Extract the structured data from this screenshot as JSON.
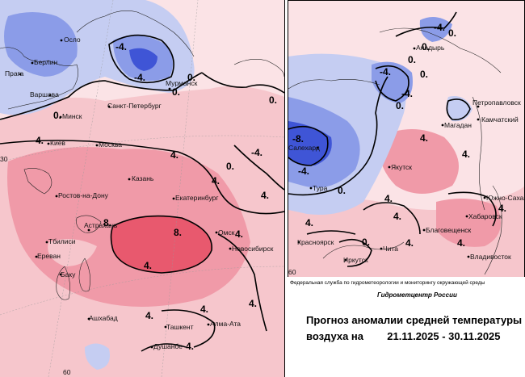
{
  "colors": {
    "warm_light": "#f6c6cc",
    "warm_mid": "#f09aa8",
    "warm_strong": "#e8596e",
    "cold_light": "#c5cdf2",
    "cold_mid": "#8b9ce8",
    "cold_strong": "#3f55d6",
    "isoline": "#000000"
  },
  "left_map": {
    "cities": [
      "Осло",
      "Берлин",
      "Прага",
      "Варшава",
      "Минск",
      "Киев",
      "Мурманск",
      "Санкт-Петербург",
      "Москва",
      "Казань",
      "Ростов-на-Дону",
      "Екатеринбург",
      "Астрахань",
      "Тбилиси",
      "Ереван",
      "Баку",
      "Омск",
      "Новосибирск",
      "Ашхабад",
      "Ташкент",
      "Алма-Ата",
      "Душанбе"
    ],
    "contour_labels": [
      "-4.",
      "-4.",
      "0.",
      "0.",
      "0.",
      "4.",
      "4.",
      "4.",
      "8.",
      "8.",
      "4.",
      "0.",
      "-4.",
      "0.",
      "4.",
      "4.",
      "4.",
      "4.",
      "4.",
      "4."
    ]
  },
  "right_map": {
    "cities": [
      "Анадырь",
      "Петропавловск",
      "Камчатский",
      "Магадан",
      "Салехард",
      "Якутск",
      "Тура",
      "Южно-Сахалинск",
      "Хабаровск",
      "Благовещенск",
      "Красноярск",
      "Иркутск",
      "Чита",
      "Владивосток"
    ],
    "contour_labels": [
      "0.",
      "-4.",
      "0.",
      "0.",
      "-4.",
      "0.",
      "-4.",
      "0.",
      "4.",
      "4.",
      "-8.",
      "-4.",
      "0.",
      "4.",
      "4.",
      "4.",
      "0.",
      "4.",
      "4.",
      "4."
    ]
  },
  "legend": {
    "agency": "Федеральная служба по гидрометеорологии и мониторингу окружающей среды",
    "center": "Гидрометцентр России",
    "title_line1": "Прогноз аномалии средней температуры",
    "title_line2_prefix": "воздуха на",
    "period": "21.11.2025 - 30.11.2025"
  },
  "axis_marks": [
    "60",
    "30",
    "60"
  ]
}
